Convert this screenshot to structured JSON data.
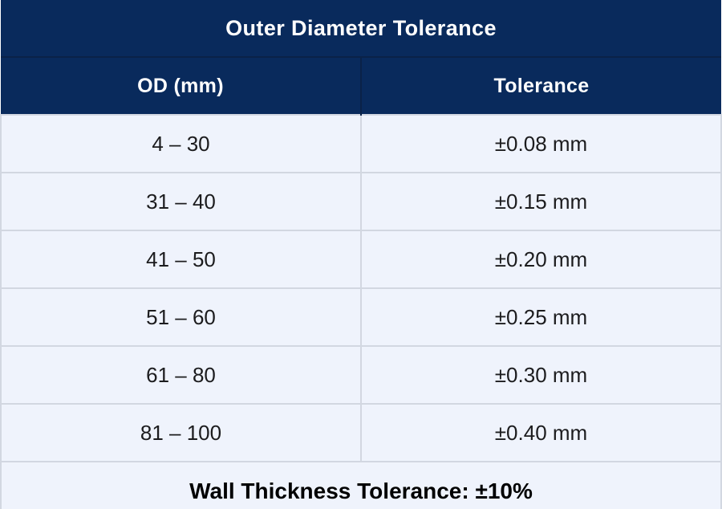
{
  "table": {
    "title": "Outer Diameter Tolerance",
    "columns": [
      "OD (mm)",
      "Tolerance"
    ],
    "rows": [
      [
        "4 – 30",
        "±0.08 mm"
      ],
      [
        "31 – 40",
        "±0.15 mm"
      ],
      [
        "41 – 50",
        "±0.20 mm"
      ],
      [
        "51 – 60",
        "±0.25 mm"
      ],
      [
        "61 – 80",
        "±0.30 mm"
      ],
      [
        "81 – 100",
        "±0.40 mm"
      ]
    ],
    "footer_note": "Wall Thickness Tolerance: ±10%"
  },
  "colors": {
    "header_bg": "#092a5c",
    "header_divider": "#0a2248",
    "header_text": "#ffffff",
    "body_bg": "#eff3fc",
    "grid_border": "#d2d7e1",
    "body_text": "#1c1c1e",
    "footer_text": "#000000"
  },
  "chart_data": {
    "type": "table",
    "title": "Outer Diameter Tolerance",
    "columns": [
      "OD (mm)",
      "Tolerance"
    ],
    "rows": [
      {
        "od_range_mm": "4 – 30",
        "tolerance": "±0.08 mm"
      },
      {
        "od_range_mm": "31 – 40",
        "tolerance": "±0.15 mm"
      },
      {
        "od_range_mm": "41 – 50",
        "tolerance": "±0.20 mm"
      },
      {
        "od_range_mm": "51 – 60",
        "tolerance": "±0.25 mm"
      },
      {
        "od_range_mm": "61 – 80",
        "tolerance": "±0.30 mm"
      },
      {
        "od_range_mm": "81 – 100",
        "tolerance": "±0.40 mm"
      }
    ],
    "footnote": "Wall Thickness Tolerance: ±10%"
  }
}
